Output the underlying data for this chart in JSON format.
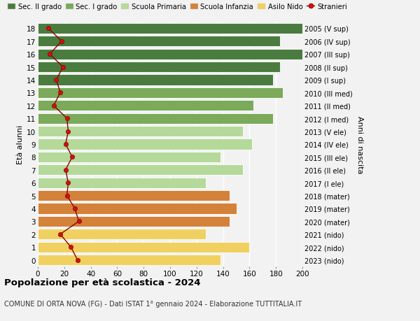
{
  "ages": [
    18,
    17,
    16,
    15,
    14,
    13,
    12,
    11,
    10,
    9,
    8,
    7,
    6,
    5,
    4,
    3,
    2,
    1,
    0
  ],
  "right_labels": [
    "2005 (V sup)",
    "2006 (IV sup)",
    "2007 (III sup)",
    "2008 (II sup)",
    "2009 (I sup)",
    "2010 (III med)",
    "2011 (II med)",
    "2012 (I med)",
    "2013 (V ele)",
    "2014 (IV ele)",
    "2015 (III ele)",
    "2016 (II ele)",
    "2017 (I ele)",
    "2018 (mater)",
    "2019 (mater)",
    "2020 (mater)",
    "2021 (nido)",
    "2022 (nido)",
    "2023 (nido)"
  ],
  "bar_values": [
    205,
    183,
    200,
    183,
    178,
    185,
    163,
    178,
    155,
    162,
    138,
    155,
    127,
    145,
    150,
    145,
    127,
    160,
    138
  ],
  "bar_colors": [
    "#4a7c3f",
    "#4a7c3f",
    "#4a7c3f",
    "#4a7c3f",
    "#4a7c3f",
    "#7aaa5a",
    "#7aaa5a",
    "#7aaa5a",
    "#b5d99a",
    "#b5d99a",
    "#b5d99a",
    "#b5d99a",
    "#b5d99a",
    "#d4813a",
    "#d4813a",
    "#d4813a",
    "#f0d060",
    "#f0d060",
    "#f0d060"
  ],
  "stranieri_values": [
    8,
    18,
    9,
    19,
    14,
    17,
    12,
    22,
    23,
    21,
    26,
    21,
    23,
    22,
    28,
    31,
    17,
    25,
    30
  ],
  "legend_labels": [
    "Sec. II grado",
    "Sec. I grado",
    "Scuola Primaria",
    "Scuola Infanzia",
    "Asilo Nido",
    "Stranieri"
  ],
  "legend_colors": [
    "#4a7c3f",
    "#7aaa5a",
    "#b5d99a",
    "#d4813a",
    "#f0d060",
    "#cc0000"
  ],
  "title": "Popolazione per età scolastica - 2024",
  "subtitle": "COMUNE DI ORTA NOVA (FG) - Dati ISTAT 1° gennaio 2024 - Elaborazione TUTTITALIA.IT",
  "ylabel_left": "Età alunni",
  "ylabel_right": "Anni di nascita",
  "xlim": [
    0,
    200
  ],
  "xticks": [
    0,
    20,
    40,
    60,
    80,
    100,
    120,
    140,
    160,
    180,
    200
  ],
  "bg_color": "#f2f2f2"
}
